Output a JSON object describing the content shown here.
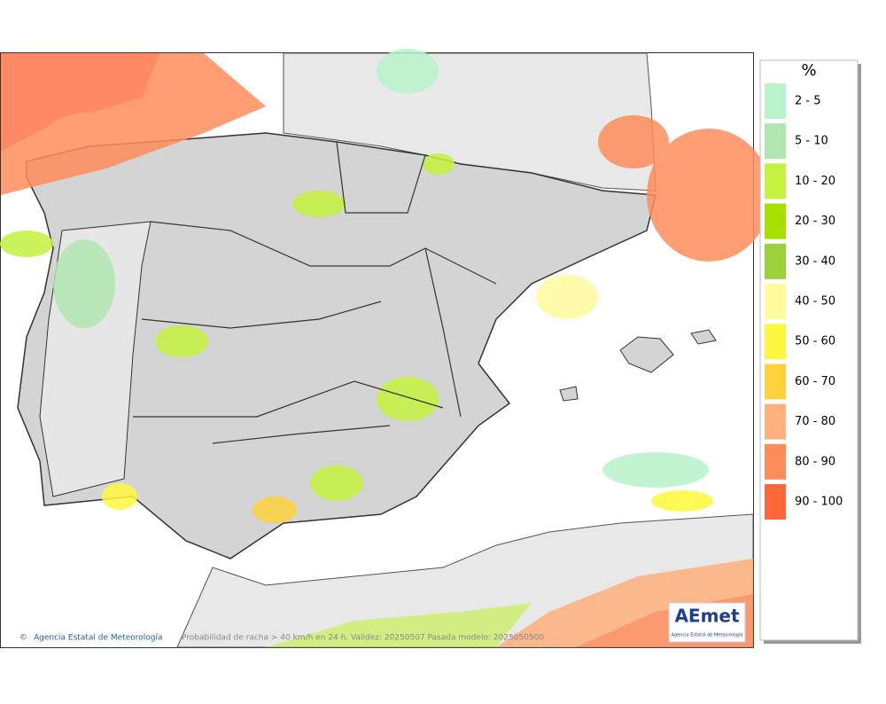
{
  "legend": {
    "title": "%",
    "items": [
      {
        "label": "2 - 5",
        "color": "#b9f3cb"
      },
      {
        "label": "5 - 10",
        "color": "#b2e6b0"
      },
      {
        "label": "10 - 20",
        "color": "#c4f23e"
      },
      {
        "label": "20 - 30",
        "color": "#a6e000"
      },
      {
        "label": "30 - 40",
        "color": "#9bd23c"
      },
      {
        "label": "40 - 50",
        "color": "#fffa9c"
      },
      {
        "label": "50 - 60",
        "color": "#fff83c"
      },
      {
        "label": "60 - 70",
        "color": "#ffd23c"
      },
      {
        "label": "70 - 80",
        "color": "#ffb07c"
      },
      {
        "label": "80 - 90",
        "color": "#ff8c5c"
      },
      {
        "label": "90 - 100",
        "color": "#ff6638"
      }
    ]
  },
  "footer": {
    "credit": "Agencia Estatal de Meteorología",
    "caption": "Probabilidad de racha > 40 km/h en 24 h. Validez: 20250507 Pasada modelo: 2025050500"
  },
  "logo": {
    "text": "AEmet",
    "subtitle": "Agencia Estatal de Meteorología"
  }
}
